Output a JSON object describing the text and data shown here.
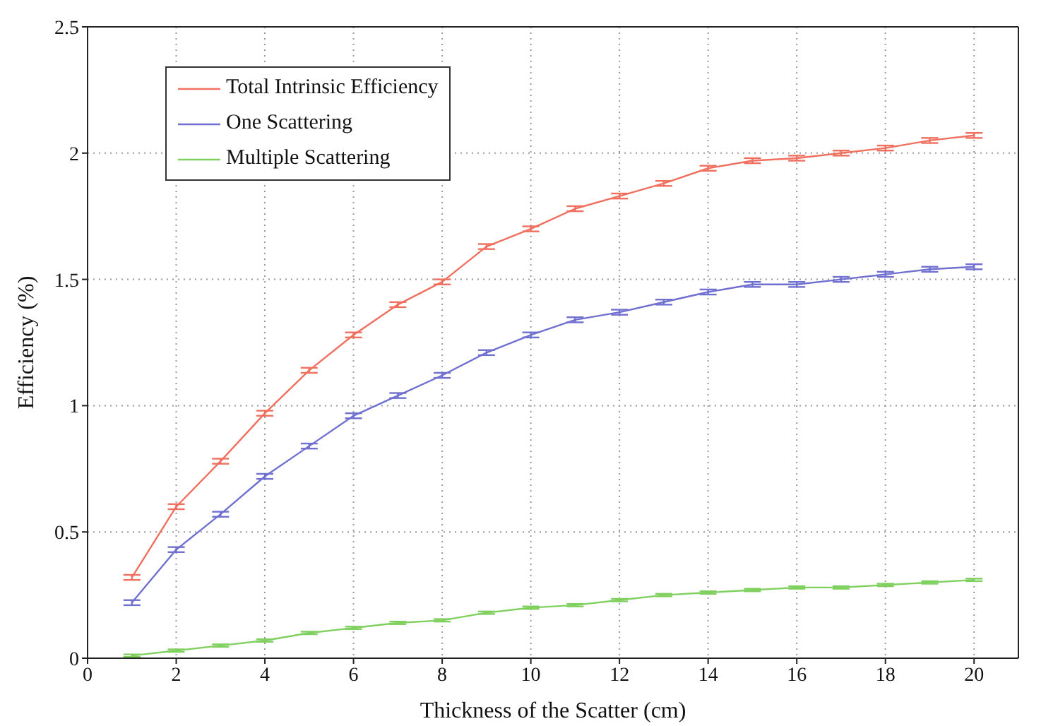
{
  "chart_data": {
    "type": "line",
    "xlabel": "Thickness of the Scatter (cm)",
    "ylabel": "Efficiency (%)",
    "x": [
      1,
      2,
      3,
      4,
      5,
      6,
      7,
      8,
      9,
      10,
      11,
      12,
      13,
      14,
      15,
      16,
      17,
      18,
      19,
      20
    ],
    "xlim": [
      0,
      21
    ],
    "xticks": [
      0,
      2,
      4,
      6,
      8,
      10,
      12,
      14,
      16,
      18,
      20
    ],
    "ylim": [
      0,
      2.5
    ],
    "yticks": [
      0,
      0.5,
      1,
      1.5,
      2,
      2.5
    ],
    "grid": true,
    "legend": "top left",
    "marker": "none",
    "line_style": "solid",
    "series": [
      {
        "name": "Total Intrinsic Efficiency",
        "color": "#f07060",
        "values": [
          0.32,
          0.6,
          0.78,
          0.97,
          1.14,
          1.28,
          1.4,
          1.49,
          1.63,
          1.7,
          1.78,
          1.83,
          1.88,
          1.94,
          1.97,
          1.98,
          2.0,
          2.02,
          2.05,
          2.07
        ],
        "errors": [
          0.01,
          0.01,
          0.01,
          0.01,
          0.01,
          0.01,
          0.01,
          0.01,
          0.01,
          0.01,
          0.01,
          0.01,
          0.01,
          0.01,
          0.01,
          0.01,
          0.01,
          0.01,
          0.01,
          0.01
        ]
      },
      {
        "name": "One Scattering",
        "color": "#7070d0",
        "values": [
          0.22,
          0.43,
          0.57,
          0.72,
          0.84,
          0.96,
          1.04,
          1.12,
          1.21,
          1.28,
          1.34,
          1.37,
          1.41,
          1.45,
          1.48,
          1.48,
          1.5,
          1.52,
          1.54,
          1.55
        ],
        "errors": [
          0.01,
          0.01,
          0.01,
          0.01,
          0.01,
          0.01,
          0.01,
          0.01,
          0.01,
          0.01,
          0.01,
          0.01,
          0.01,
          0.01,
          0.01,
          0.01,
          0.01,
          0.01,
          0.01,
          0.01
        ]
      },
      {
        "name": "Multiple Scattering",
        "color": "#80d060",
        "values": [
          0.01,
          0.03,
          0.05,
          0.07,
          0.1,
          0.12,
          0.14,
          0.15,
          0.18,
          0.2,
          0.21,
          0.23,
          0.25,
          0.26,
          0.27,
          0.28,
          0.28,
          0.29,
          0.3,
          0.31
        ],
        "errors": [
          0.005,
          0.005,
          0.005,
          0.005,
          0.005,
          0.005,
          0.005,
          0.005,
          0.005,
          0.005,
          0.005,
          0.005,
          0.005,
          0.005,
          0.005,
          0.005,
          0.005,
          0.005,
          0.005,
          0.005
        ]
      }
    ]
  }
}
